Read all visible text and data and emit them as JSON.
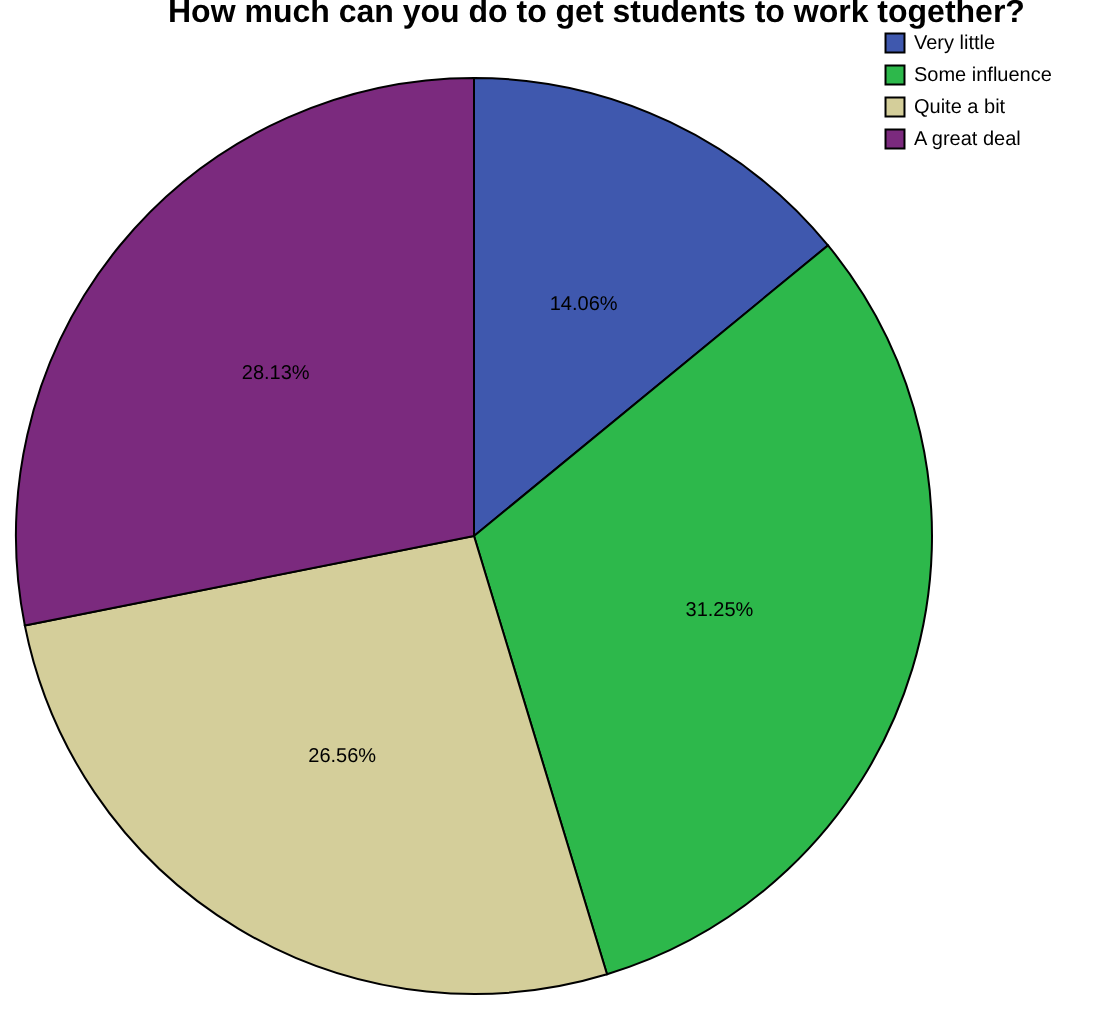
{
  "chart_data": {
    "type": "pie",
    "title": "How much can you do to get students to work together?",
    "categories": [
      "Very little",
      "Some influence",
      "Quite a bit",
      "A great deal"
    ],
    "values": [
      14.06,
      31.25,
      26.56,
      28.13
    ],
    "colors": [
      "#3f58ae",
      "#2db84b",
      "#d4ce9a",
      "#7b2a7e"
    ],
    "value_labels": [
      "14.06%",
      "31.25%",
      "26.56%",
      "28.13%"
    ],
    "legend": "top right"
  }
}
